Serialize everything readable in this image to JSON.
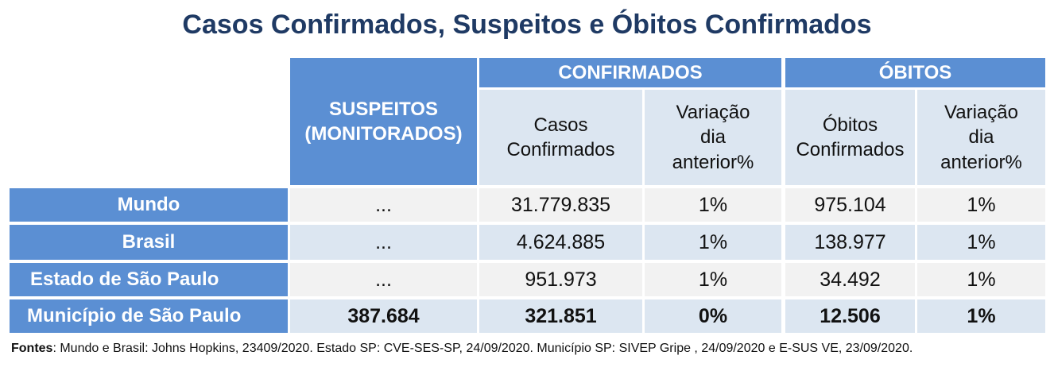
{
  "title": "Casos Confirmados, Suspeitos e Óbitos Confirmados",
  "table": {
    "group_headers": {
      "suspeitos": "SUSPEITOS\n(MONITORADOS)",
      "confirmados": "CONFIRMADOS",
      "obitos": "ÓBITOS"
    },
    "sub_headers": {
      "casos_confirmados": "Casos\nConfirmados",
      "variacao_casos": "Variação\ndia\nanterior%",
      "obitos_confirmados": "Óbitos\nConfirmados",
      "variacao_obitos": "Variação\ndia\nanterior%"
    },
    "rows": [
      {
        "label": "Mundo",
        "suspeitos": "...",
        "casos": "31.779.835",
        "var_casos": "1%",
        "obitos": "975.104",
        "var_obitos": "1%"
      },
      {
        "label": "Brasil",
        "suspeitos": "...",
        "casos": "4.624.885",
        "var_casos": "1%",
        "obitos": "138.977",
        "var_obitos": "1%"
      },
      {
        "label": "Estado de São Paulo",
        "suspeitos": "...",
        "casos": "951.973",
        "var_casos": "1%",
        "obitos": "34.492",
        "var_obitos": "1%"
      },
      {
        "label": "Município de São Paulo",
        "suspeitos": "387.684",
        "casos": "321.851",
        "var_casos": "0%",
        "obitos": "12.506",
        "var_obitos": "1%"
      }
    ]
  },
  "sources": {
    "label": "Fontes",
    "text": ": Mundo e Brasil: Johns Hopkins, 23409/2020. Estado SP: CVE-SES-SP, 24/09/2020. Município SP: SIVEP Gripe , 24/09/2020 e E-SUS VE, 23/09/2020."
  },
  "colors": {
    "header_blue": "#5b8fd3",
    "light_blue": "#dce6f1",
    "light_gray": "#f2f2f2",
    "title_navy": "#1f3a64"
  }
}
